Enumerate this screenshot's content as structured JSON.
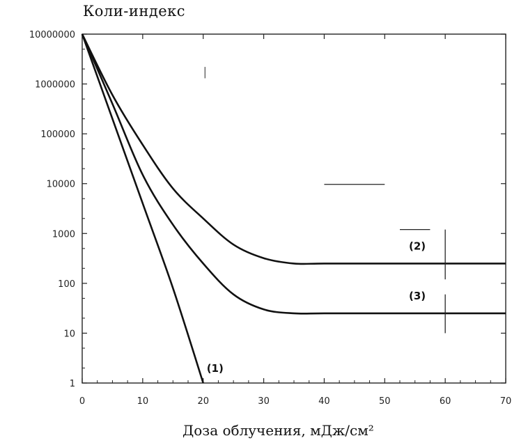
{
  "chart_data": {
    "type": "line",
    "title": "",
    "ylabel": "Коли-индекс",
    "xlabel": "Доза облучения, мДж/см²",
    "x_scale": "linear",
    "y_scale": "log",
    "xlim": [
      0,
      70
    ],
    "ylim": [
      1,
      10000000
    ],
    "x_ticks": [
      "0",
      "10",
      "20",
      "30",
      "40",
      "50",
      "60",
      "70"
    ],
    "y_ticks": [
      "1",
      "10",
      "100",
      "1000",
      "10000",
      "100000",
      "1000000",
      "10000000"
    ],
    "grid": false,
    "legend": "none",
    "series": [
      {
        "name": "(1)",
        "x": [
          0,
          5,
          10,
          15,
          20
        ],
        "y": [
          10000000,
          200000,
          4000,
          80,
          1
        ]
      },
      {
        "name": "(2)",
        "x": [
          0,
          5,
          10,
          15,
          20,
          25,
          30,
          35,
          40,
          50,
          60,
          70
        ],
        "y": [
          10000000,
          600000,
          60000,
          8000,
          2000,
          600,
          320,
          250,
          250,
          250,
          250,
          250
        ]
      },
      {
        "name": "(3)",
        "x": [
          0,
          5,
          10,
          15,
          20,
          25,
          30,
          35,
          40,
          50,
          60,
          70
        ],
        "y": [
          10000000,
          400000,
          15000,
          1500,
          250,
          60,
          30,
          25,
          25,
          25,
          25,
          25
        ]
      }
    ]
  }
}
